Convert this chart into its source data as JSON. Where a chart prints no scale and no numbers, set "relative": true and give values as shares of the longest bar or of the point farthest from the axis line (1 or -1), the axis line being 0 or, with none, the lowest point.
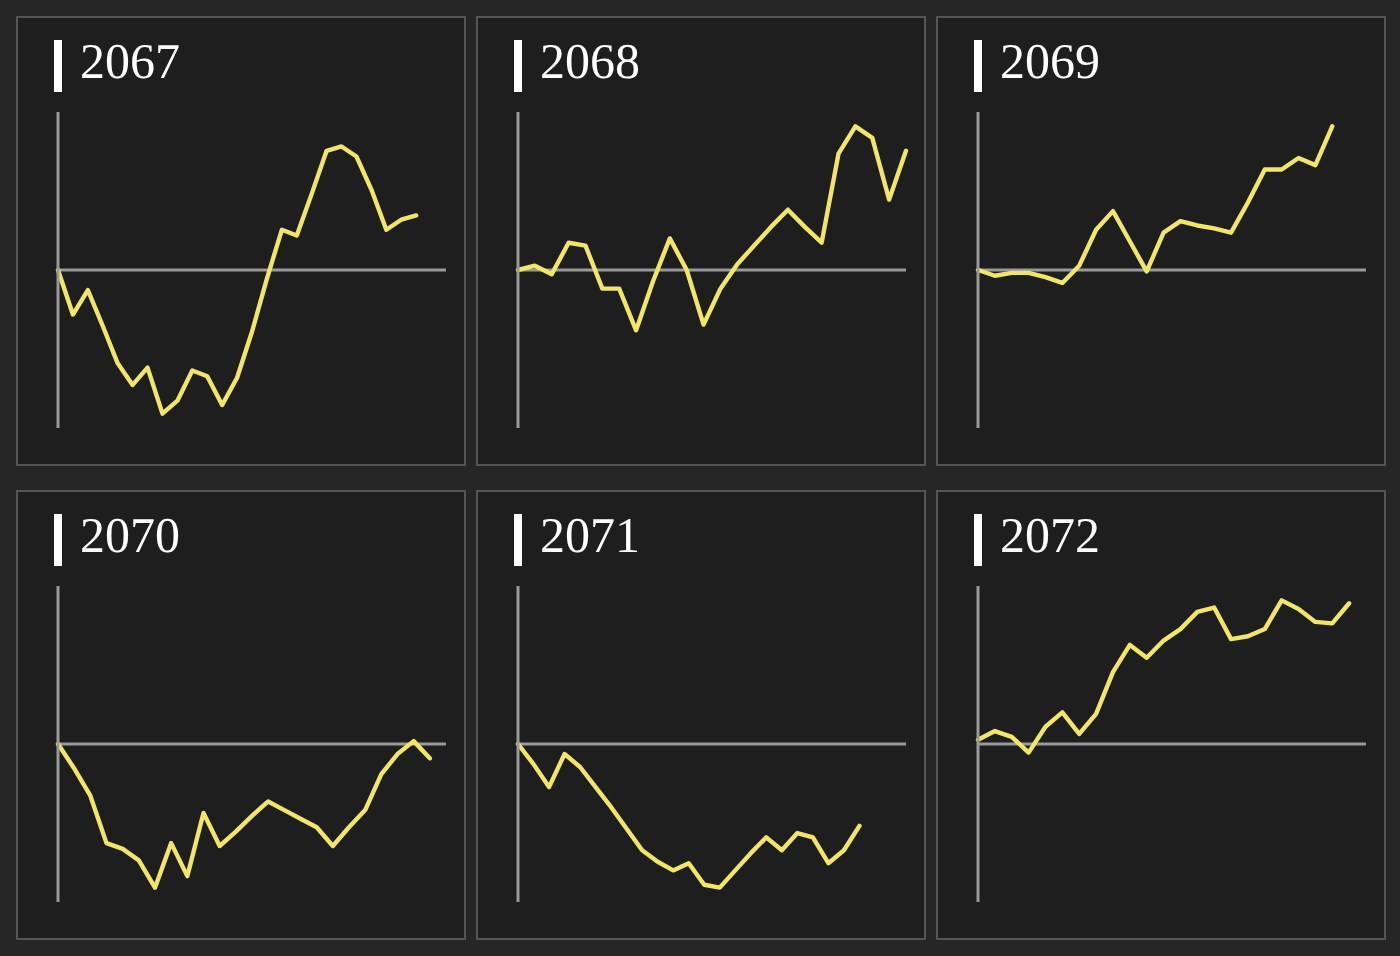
{
  "chart_data": [
    {
      "type": "line",
      "title": "2067",
      "relative": true,
      "color": "#f2e66a",
      "categories": [
        null,
        null,
        null,
        null,
        null,
        null,
        null,
        null,
        null,
        null,
        null,
        null,
        null,
        null,
        null,
        null,
        null,
        null,
        null,
        null,
        null,
        null,
        null,
        null,
        null,
        null,
        null
      ],
      "values": [
        0,
        -0.31,
        -0.14,
        -0.39,
        -0.65,
        -0.8,
        -0.68,
        -1,
        -0.91,
        -0.7,
        -0.74,
        -0.94,
        -0.75,
        -0.43,
        -0.06,
        0.28,
        0.24,
        0.53,
        0.83,
        0.86,
        0.79,
        0.56,
        0.28,
        0.35,
        0.38,
        null,
        null
      ]
    },
    {
      "type": "line",
      "title": "2068",
      "relative": true,
      "color": "#f2e66a",
      "categories": [
        null,
        null,
        null,
        null,
        null,
        null,
        null,
        null,
        null,
        null,
        null,
        null,
        null,
        null,
        null,
        null,
        null,
        null,
        null,
        null,
        null,
        null,
        null,
        null
      ],
      "values": [
        0,
        0.03,
        -0.03,
        0.19,
        0.17,
        -0.13,
        -0.13,
        -0.42,
        -0.08,
        0.22,
        0,
        -0.38,
        -0.13,
        0.04,
        0.17,
        0.3,
        0.42,
        0.3,
        0.19,
        0.81,
        1,
        0.92,
        0.49,
        0.83
      ]
    },
    {
      "type": "line",
      "title": "2069",
      "relative": true,
      "color": "#f2e66a",
      "categories": [
        null,
        null,
        null,
        null,
        null,
        null,
        null,
        null,
        null,
        null,
        null,
        null,
        null,
        null,
        null,
        null,
        null,
        null,
        null,
        null,
        null,
        null,
        null,
        null
      ],
      "values": [
        0,
        -0.04,
        -0.02,
        -0.02,
        -0.05,
        -0.09,
        0.03,
        0.28,
        0.41,
        0.2,
        -0.01,
        0.26,
        0.34,
        0.31,
        0.29,
        0.26,
        0.47,
        0.7,
        0.7,
        0.78,
        0.73,
        1,
        null,
        null
      ]
    },
    {
      "type": "line",
      "title": "2070",
      "relative": true,
      "color": "#f2e66a",
      "categories": [
        null,
        null,
        null,
        null,
        null,
        null,
        null,
        null,
        null,
        null,
        null,
        null,
        null,
        null,
        null,
        null,
        null,
        null,
        null,
        null,
        null,
        null,
        null,
        null,
        null
      ],
      "values": [
        0,
        -0.17,
        -0.36,
        -0.69,
        -0.73,
        -0.81,
        -1,
        -0.69,
        -0.92,
        -0.48,
        -0.71,
        -0.61,
        -0.5,
        -0.4,
        -0.46,
        -0.52,
        -0.58,
        -0.71,
        -0.58,
        -0.46,
        -0.21,
        -0.07,
        0.02,
        -0.1,
        null
      ]
    },
    {
      "type": "line",
      "title": "2071",
      "relative": true,
      "color": "#f2e66a",
      "categories": [
        null,
        null,
        null,
        null,
        null,
        null,
        null,
        null,
        null,
        null,
        null,
        null,
        null,
        null,
        null,
        null,
        null,
        null,
        null,
        null,
        null,
        null,
        null,
        null,
        null,
        null
      ],
      "values": [
        0,
        -0.14,
        -0.3,
        -0.07,
        -0.16,
        -0.3,
        -0.44,
        -0.59,
        -0.74,
        -0.82,
        -0.88,
        -0.83,
        -0.98,
        -1,
        -0.88,
        -0.76,
        -0.65,
        -0.74,
        -0.62,
        -0.65,
        -0.83,
        -0.74,
        -0.57,
        null,
        null,
        null
      ]
    },
    {
      "type": "line",
      "title": "2072",
      "relative": true,
      "color": "#f2e66a",
      "categories": [
        null,
        null,
        null,
        null,
        null,
        null,
        null,
        null,
        null,
        null,
        null,
        null,
        null,
        null,
        null,
        null,
        null,
        null,
        null,
        null,
        null,
        null,
        null,
        null
      ],
      "values": [
        0.03,
        0.09,
        0.05,
        -0.06,
        0.12,
        0.22,
        0.07,
        0.21,
        0.5,
        0.69,
        0.6,
        0.72,
        0.8,
        0.92,
        0.95,
        0.73,
        0.75,
        0.8,
        1,
        0.94,
        0.85,
        0.84,
        0.98,
        null
      ]
    }
  ]
}
